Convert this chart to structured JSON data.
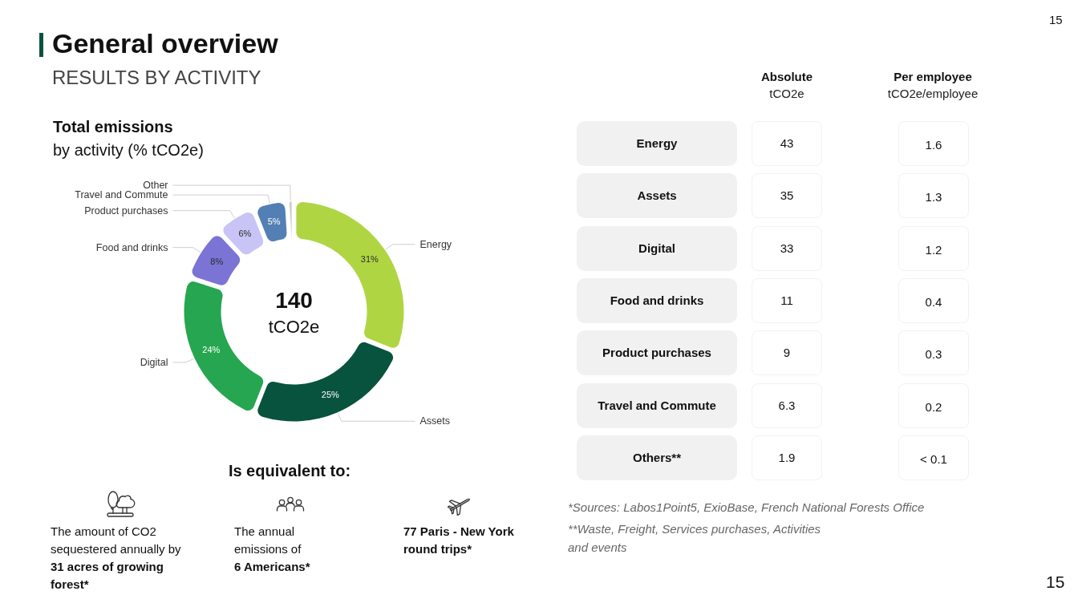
{
  "chart_data": [
    {
      "type": "other",
      "title": "General overview",
      "subtitle": "RESULTS BY ACTIVITY",
      "annotations": [
        "15",
        "15"
      ]
    },
    {
      "type": "donut",
      "title": "Total emissions",
      "subtitle": "by activity (% tCO2e)",
      "categories": [
        "Energy",
        "Assets",
        "Digital",
        "Food and drinks",
        "Product purchases",
        "Travel and Commute",
        "Other"
      ],
      "values": [
        31,
        25,
        24,
        8,
        6,
        5,
        1
      ],
      "colors": [
        "#b0d543",
        "#08533d",
        "#26a650",
        "#7b74d4",
        "#c8c4f6",
        "#537fb4",
        "#c9c9c9"
      ],
      "value_labels": [
        "31%",
        "25%",
        "24%",
        "8%",
        "6%",
        "5%",
        null
      ],
      "annotations": [
        "140",
        "tCO2e"
      ]
    },
    {
      "type": "other",
      "categories": [
        "Energy",
        "Assets",
        "Digital",
        "Food and drinks",
        "Product purchases",
        "Travel and Commute",
        "Others**"
      ],
      "series": [
        {
          "values": [
            43,
            35,
            33,
            11,
            9,
            6.3,
            1.9
          ]
        },
        {
          "values": [
            1.6,
            1.3,
            1.2,
            0.4,
            0.3,
            0.2,
            null
          ],
          "value_labels": [
            "1.6",
            "1.3",
            "1.2",
            "0.4",
            "0.3",
            "0.2",
            "< 0.1"
          ]
        }
      ],
      "data_labels": true,
      "annotations": [
        "Absolute",
        "tCO2e",
        "Per employee",
        "tCO2e/employee",
        "*Sources: Labos1Point5, ExioBase, French National Forests Office",
        "**Waste, Freight, Services purchases, Activities and events"
      ]
    },
    {
      "type": "other",
      "title": "Is equivalent to:",
      "annotations": [
        "The amount of CO2 sequestered annually by",
        "31 acres of growing forest*",
        "The annual emissions of",
        "6 Americans*",
        "77 Paris - New York round trips*"
      ]
    }
  ]
}
